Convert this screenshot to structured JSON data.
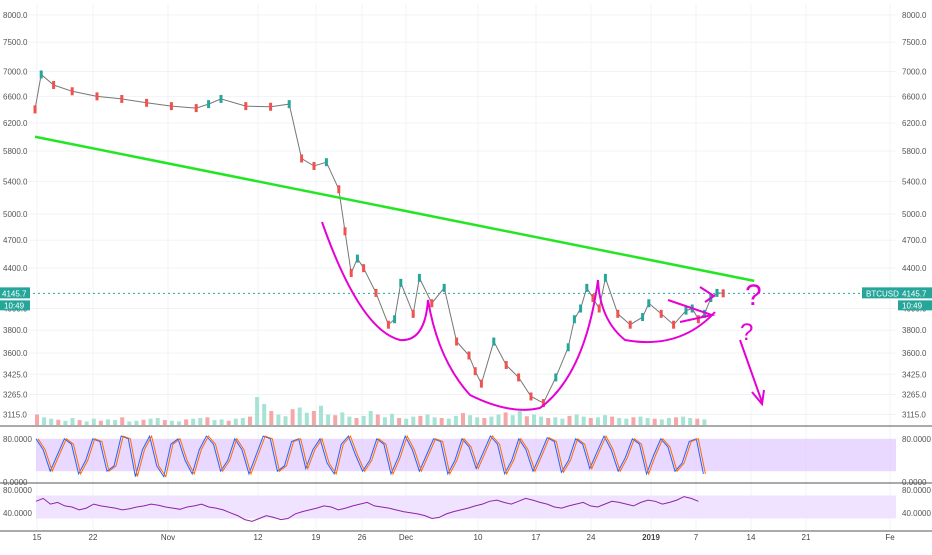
{
  "chart_data": {
    "type": "candlestick",
    "symbol": "BTCUSD",
    "price_axis": {
      "ticks": [
        "8000.0",
        "7500.0",
        "7000.0",
        "6600.0",
        "6200.0",
        "5800.0",
        "5400.0",
        "5000.0",
        "4700.0",
        "4400.0",
        "4000.0",
        "3800.0",
        "3600.0",
        "3425.0",
        "3265.0",
        "3115.0"
      ],
      "scale": "log",
      "range": [
        3060,
        8150
      ]
    },
    "time_axis": {
      "ticks": [
        "15",
        "22",
        "Nov",
        "12",
        "19",
        "26",
        "Dec",
        "10",
        "17",
        "24",
        "2019",
        "7",
        "14",
        "21",
        "Fe"
      ]
    },
    "last_price": {
      "value": 4145.7,
      "label_left": "4145.7",
      "label_right": "4145.7",
      "countdown": "10:49",
      "countdown_right": "10:49"
    },
    "price_points": [
      {
        "x": 0,
        "y": 6400
      },
      {
        "x": 1,
        "y": 6950
      },
      {
        "x": 3,
        "y": 6780
      },
      {
        "x": 6,
        "y": 6680
      },
      {
        "x": 10,
        "y": 6600
      },
      {
        "x": 14,
        "y": 6560
      },
      {
        "x": 18,
        "y": 6500
      },
      {
        "x": 22,
        "y": 6450
      },
      {
        "x": 26,
        "y": 6420
      },
      {
        "x": 28,
        "y": 6480
      },
      {
        "x": 30,
        "y": 6560
      },
      {
        "x": 34,
        "y": 6450
      },
      {
        "x": 38,
        "y": 6440
      },
      {
        "x": 41,
        "y": 6480
      },
      {
        "x": 43,
        "y": 5700
      },
      {
        "x": 45,
        "y": 5600
      },
      {
        "x": 47,
        "y": 5650
      },
      {
        "x": 49,
        "y": 5300
      },
      {
        "x": 50,
        "y": 4800
      },
      {
        "x": 51,
        "y": 4350
      },
      {
        "x": 52,
        "y": 4500
      },
      {
        "x": 53,
        "y": 4400
      },
      {
        "x": 55,
        "y": 4150
      },
      {
        "x": 57,
        "y": 3850
      },
      {
        "x": 58,
        "y": 3900
      },
      {
        "x": 59,
        "y": 4250
      },
      {
        "x": 61,
        "y": 3950
      },
      {
        "x": 62,
        "y": 4300
      },
      {
        "x": 64,
        "y": 4050
      },
      {
        "x": 66,
        "y": 4200
      },
      {
        "x": 68,
        "y": 3700
      },
      {
        "x": 70,
        "y": 3580
      },
      {
        "x": 71,
        "y": 3450
      },
      {
        "x": 72,
        "y": 3350
      },
      {
        "x": 74,
        "y": 3700
      },
      {
        "x": 76,
        "y": 3500
      },
      {
        "x": 78,
        "y": 3400
      },
      {
        "x": 80,
        "y": 3250
      },
      {
        "x": 82,
        "y": 3200
      },
      {
        "x": 84,
        "y": 3400
      },
      {
        "x": 86,
        "y": 3650
      },
      {
        "x": 87,
        "y": 3900
      },
      {
        "x": 88,
        "y": 4000
      },
      {
        "x": 89,
        "y": 4200
      },
      {
        "x": 90,
        "y": 4100
      },
      {
        "x": 91,
        "y": 4000
      },
      {
        "x": 92,
        "y": 4300
      },
      {
        "x": 94,
        "y": 3950
      },
      {
        "x": 96,
        "y": 3850
      },
      {
        "x": 98,
        "y": 3920
      },
      {
        "x": 99,
        "y": 4050
      },
      {
        "x": 101,
        "y": 3950
      },
      {
        "x": 103,
        "y": 3850
      },
      {
        "x": 105,
        "y": 3980
      },
      {
        "x": 106,
        "y": 4000
      },
      {
        "x": 107,
        "y": 3900
      },
      {
        "x": 108,
        "y": 3950
      },
      {
        "x": 109,
        "y": 4100
      },
      {
        "x": 110,
        "y": 4150
      },
      {
        "x": 111,
        "y": 4146
      }
    ],
    "trendline": {
      "points": [
        {
          "x": 0,
          "y": 6000
        },
        {
          "x": 116,
          "y": 4270
        }
      ],
      "color": "#22e622"
    },
    "volume": [
      30,
      22,
      18,
      15,
      12,
      20,
      14,
      10,
      18,
      12,
      16,
      14,
      22,
      10,
      12,
      15,
      18,
      20,
      14,
      12,
      10,
      16,
      18,
      20,
      22,
      14,
      16,
      12,
      18,
      20,
      24,
      80,
      60,
      40,
      30,
      25,
      45,
      50,
      35,
      40,
      55,
      30,
      28,
      36,
      24,
      20,
      26,
      40,
      30,
      22,
      32,
      20,
      18,
      24,
      26,
      30,
      22,
      20,
      18,
      26,
      34,
      28,
      22,
      20,
      24,
      30,
      36,
      28,
      40,
      25,
      30,
      24,
      20,
      22,
      18,
      26,
      30,
      24,
      20,
      22,
      28,
      24,
      20,
      18,
      22,
      24,
      20,
      18,
      16,
      20,
      22,
      24,
      20,
      18,
      16
    ],
    "indicator1": {
      "ticks": [
        "80.0000",
        "0.0000"
      ],
      "band": [
        20,
        80
      ],
      "series_values": [
        80,
        60,
        20,
        50,
        80,
        70,
        15,
        40,
        80,
        75,
        20,
        30,
        85,
        80,
        10,
        60,
        85,
        30,
        10,
        70,
        80,
        40,
        15,
        60,
        85,
        70,
        20,
        40,
        80,
        60,
        15,
        50,
        85,
        80,
        20,
        30,
        75,
        80,
        25,
        60,
        80,
        35,
        15,
        70,
        85,
        50,
        20,
        40,
        80,
        70,
        15,
        45,
        85,
        60,
        20,
        50,
        80,
        75,
        15,
        40,
        80,
        65,
        25,
        55,
        85,
        70,
        15,
        40,
        80,
        60,
        20,
        50,
        82,
        75,
        18,
        40,
        80,
        70,
        25,
        55,
        85,
        60,
        20,
        45,
        80,
        70,
        15,
        50,
        80,
        65,
        20,
        35,
        75,
        80,
        15
      ]
    },
    "indicator2": {
      "ticks": [
        "80.0000",
        "40.0000"
      ],
      "band": [
        30,
        70
      ],
      "series_values": [
        60,
        65,
        55,
        58,
        52,
        50,
        45,
        48,
        55,
        52,
        50,
        48,
        45,
        47,
        50,
        52,
        55,
        53,
        50,
        48,
        46,
        50,
        52,
        55,
        50,
        48,
        45,
        40,
        35,
        28,
        25,
        30,
        35,
        32,
        28,
        30,
        38,
        42,
        45,
        48,
        52,
        50,
        45,
        48,
        52,
        55,
        58,
        52,
        50,
        48,
        45,
        42,
        40,
        38,
        35,
        30,
        32,
        38,
        42,
        45,
        48,
        52,
        55,
        60,
        62,
        58,
        55,
        60,
        65,
        62,
        58,
        55,
        50,
        48,
        52,
        55,
        58,
        52,
        50,
        55,
        60,
        58,
        55,
        52,
        58,
        62,
        60,
        55,
        58,
        62,
        68,
        65,
        60
      ]
    },
    "annotations": [
      "?",
      "?"
    ]
  }
}
